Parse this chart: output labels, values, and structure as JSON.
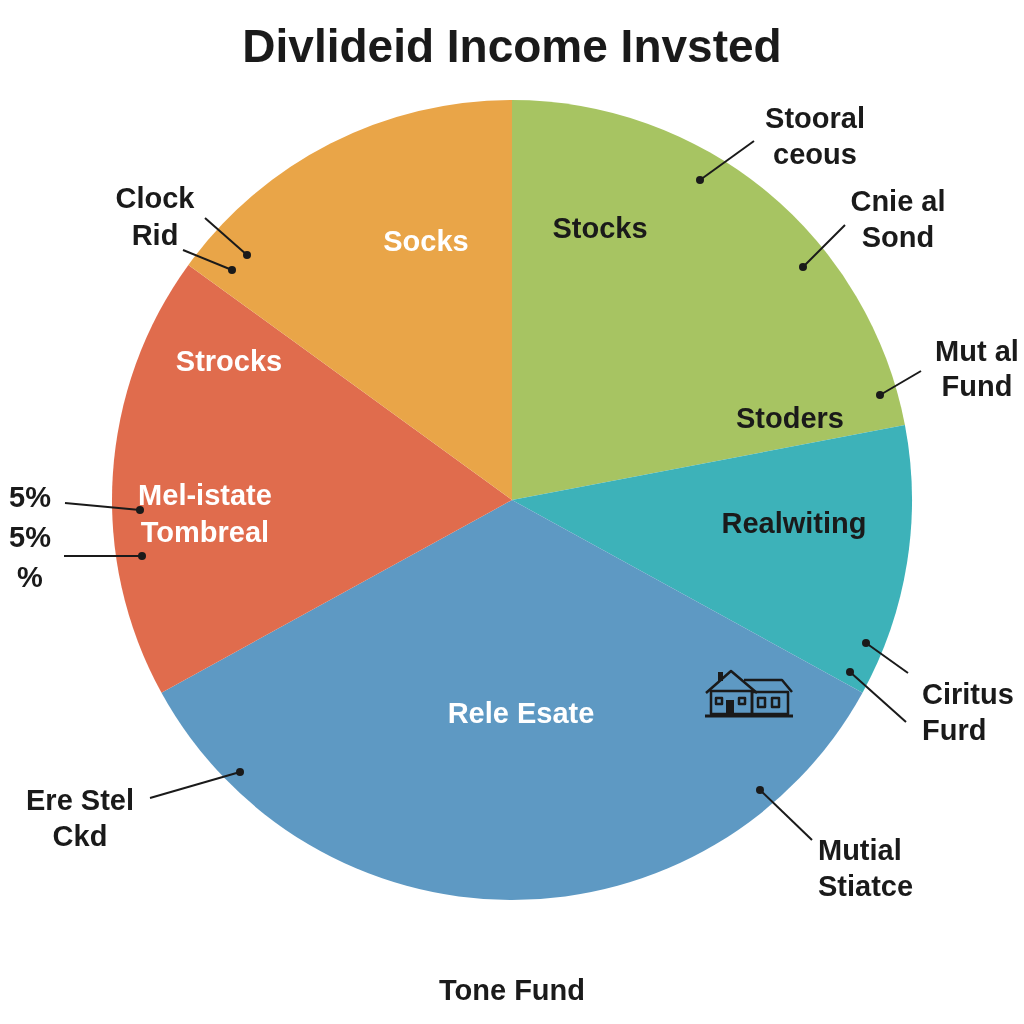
{
  "chart_data": {
    "type": "pie",
    "title": "Divlideid Income Invsted",
    "categories": [
      "Stocks",
      "Realwiting",
      "Rele Esate",
      "Strocks",
      "Socks"
    ],
    "values": [
      22,
      11,
      34,
      18,
      15
    ],
    "colors": [
      "#a7c462",
      "#3db2b9",
      "#5e99c3",
      "#e06c4d",
      "#e9a548"
    ],
    "annotations": [
      "Stoders",
      "Mel-istate\nTombreal",
      "Stooral\nceous",
      "Cnie al\nSond",
      "Mut al\nFund",
      "Ciritus\nFurd",
      "Mutial\nStiatce",
      "Tone Fund",
      "Ere Stel\nCkd",
      "5%\n5%\n%",
      "Clock\nRid"
    ]
  }
}
